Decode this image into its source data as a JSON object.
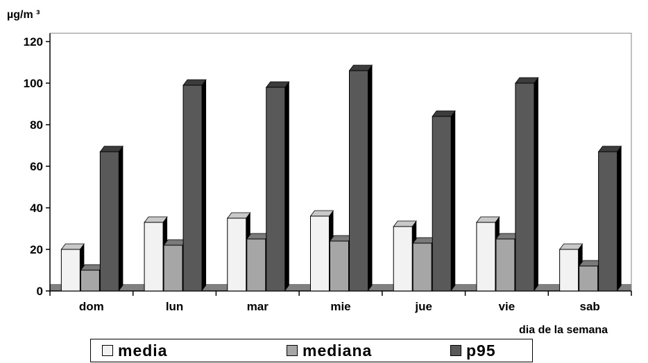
{
  "chart_data": {
    "type": "bar",
    "ylabel": "µg/m ³",
    "xlabel": "dia de la semana",
    "ylim": [
      0,
      120
    ],
    "yticks": [
      0,
      20,
      40,
      60,
      80,
      100,
      120
    ],
    "categories": [
      "dom",
      "lun",
      "mar",
      "mie",
      "jue",
      "vie",
      "sab"
    ],
    "series": [
      {
        "name": "media",
        "color": "#f2f2f2",
        "top_color": "#c8c8c8",
        "side_color": "#000000",
        "values": [
          20,
          33,
          35,
          36,
          31,
          33,
          20
        ]
      },
      {
        "name": "mediana",
        "color": "#a6a6a6",
        "top_color": "#7a7a7a",
        "side_color": "#000000",
        "values": [
          10,
          22,
          25,
          24,
          23,
          25,
          12
        ]
      },
      {
        "name": "p95",
        "color": "#595959",
        "top_color": "#3c3c3c",
        "side_color": "#000000",
        "values": [
          67,
          99,
          98,
          106,
          84,
          100,
          67
        ]
      }
    ],
    "floor_color": "#808080",
    "grid": false,
    "legend_position": "bottom"
  }
}
